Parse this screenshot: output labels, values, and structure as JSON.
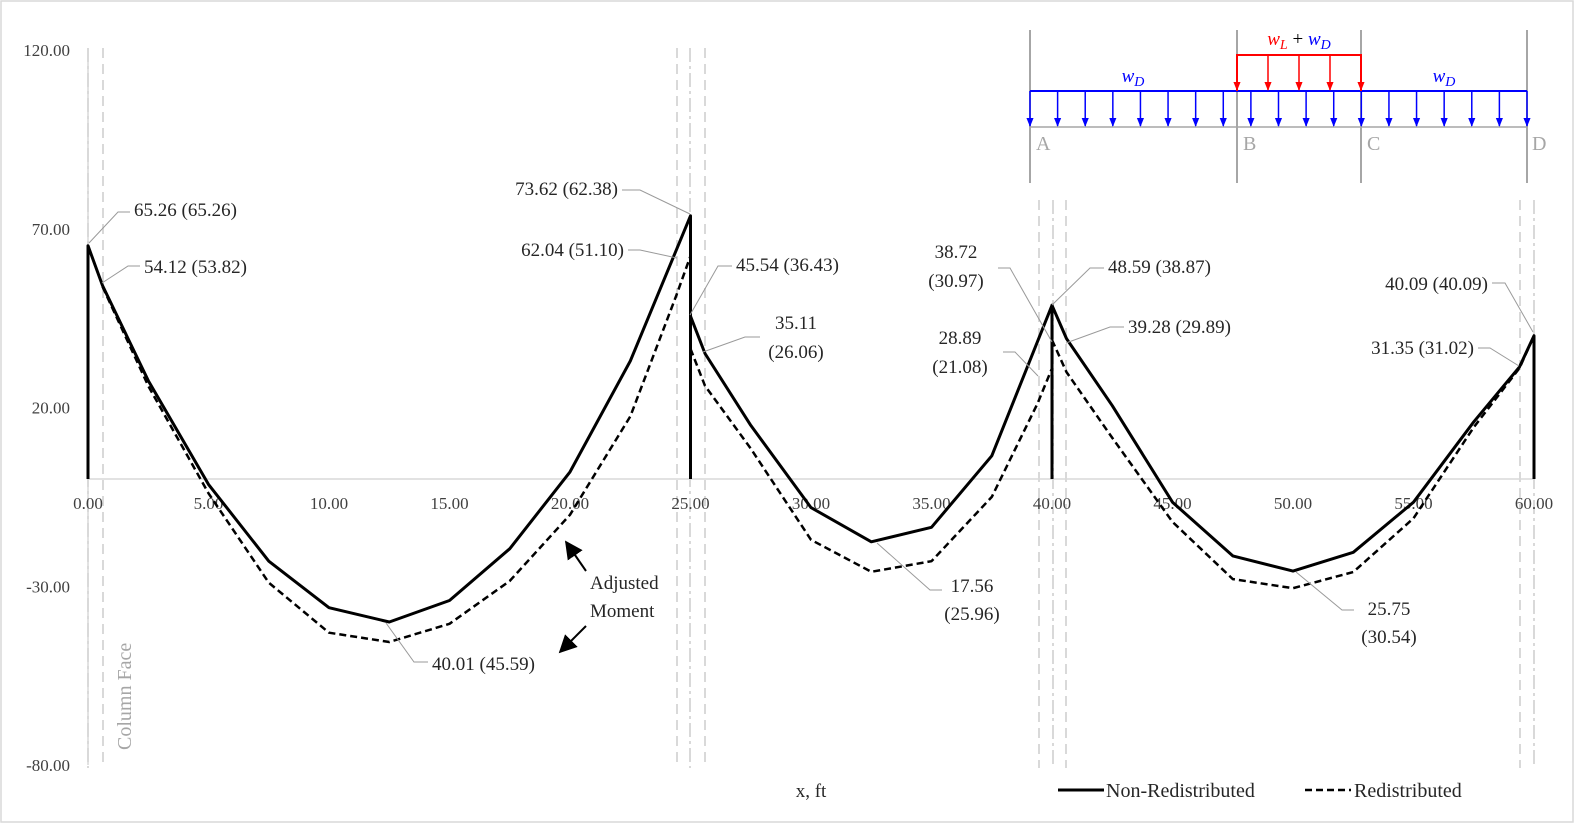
{
  "chart_data": {
    "type": "line",
    "xlabel": "x, ft",
    "ylabel": "",
    "xlim": [
      0,
      60
    ],
    "ylim": [
      -80,
      120
    ],
    "x_ticks": [
      "0.00",
      "5.00",
      "10.00",
      "15.00",
      "20.00",
      "25.00",
      "30.00",
      "35.00",
      "40.00",
      "45.00",
      "50.00",
      "55.00",
      "60.00"
    ],
    "y_ticks": [
      "120.00",
      "70.00",
      "20.00",
      "-30.00",
      "-80.00"
    ],
    "legend_position": "bottom-right",
    "series": [
      {
        "name": "Non-Redistributed",
        "style": "solid",
        "color": "#000000",
        "spans": [
          {
            "x": [
              0,
              0,
              0.6,
              2.5,
              5,
              7.5,
              10,
              12.5,
              15,
              17.5,
              20,
              22.5,
              25,
              25
            ],
            "y": [
              0,
              65.26,
              54.12,
              27.5,
              -1.5,
              -23,
              -36,
              -40.01,
              -34,
              -19.5,
              2,
              33,
              73.62,
              0
            ]
          },
          {
            "x": [
              25,
              25,
              25.6,
              27.5,
              30,
              32.5,
              35,
              37.5,
              40,
              40
            ],
            "y": [
              0,
              45.54,
              35.11,
              15,
              -8,
              -17.56,
              -13.5,
              6.5,
              48.59,
              0
            ]
          },
          {
            "x": [
              40,
              40,
              40.6,
              42.5,
              45,
              47.5,
              50,
              52.5,
              55,
              57.5,
              59.4,
              60,
              60
            ],
            "y": [
              0,
              48.59,
              39.28,
              20.5,
              -6.5,
              -21.5,
              -25.75,
              -20.5,
              -6.5,
              16,
              31.35,
              40.09,
              0
            ]
          }
        ]
      },
      {
        "name": "Redistributed",
        "style": "dashed",
        "color": "#000000",
        "spans": [
          {
            "x": [
              0.6,
              2.5,
              5,
              7.5,
              10,
              12.5,
              15,
              17.5,
              20,
              22.5,
              24.4,
              25
            ],
            "y": [
              53.82,
              26,
              -4,
              -29,
              -43,
              -45.59,
              -40.5,
              -28.5,
              -10,
              17.5,
              51.1,
              62.38
            ]
          },
          {
            "x": [
              25,
              25.6,
              27.5,
              30,
              32.5,
              35,
              37.5,
              39.4,
              40
            ],
            "y": [
              36.43,
              26.06,
              8.5,
              -17,
              -25.96,
              -23,
              -5,
              21.08,
              30.97
            ]
          },
          {
            "x": [
              40,
              40.6,
              42.5,
              45,
              47.5,
              50,
              52.5,
              55,
              57.5,
              59.4,
              60
            ],
            "y": [
              38.87,
              29.89,
              11.5,
              -12,
              -28,
              -30.54,
              -26,
              -11,
              14.5,
              31.02,
              40.09
            ]
          }
        ]
      }
    ],
    "annotations": [
      "65.26 (65.26)",
      "54.12 (53.82)",
      "73.62 (62.38)",
      "62.04 (51.10)",
      "45.54 (36.43)",
      "35.11",
      "(26.06)",
      "38.72",
      "(30.97)",
      "28.89",
      "(21.08)",
      "48.59 (38.87)",
      "39.28 (29.89)",
      "40.09 (40.09)",
      "31.35 (31.02)",
      "17.56",
      "(25.96)",
      "25.75",
      "(30.54)",
      "40.01 (45.59)",
      "Adjusted",
      "Moment",
      "Column Face"
    ],
    "inset_diagram": {
      "supports": [
        "A",
        "B",
        "C",
        "D"
      ],
      "load_left": "wD",
      "load_right": "wD",
      "load_middle": "wL + wD",
      "colors": {
        "dead_load": "#0000ff",
        "live_load": "#ff0000",
        "support": "#a6a6a6"
      }
    }
  }
}
